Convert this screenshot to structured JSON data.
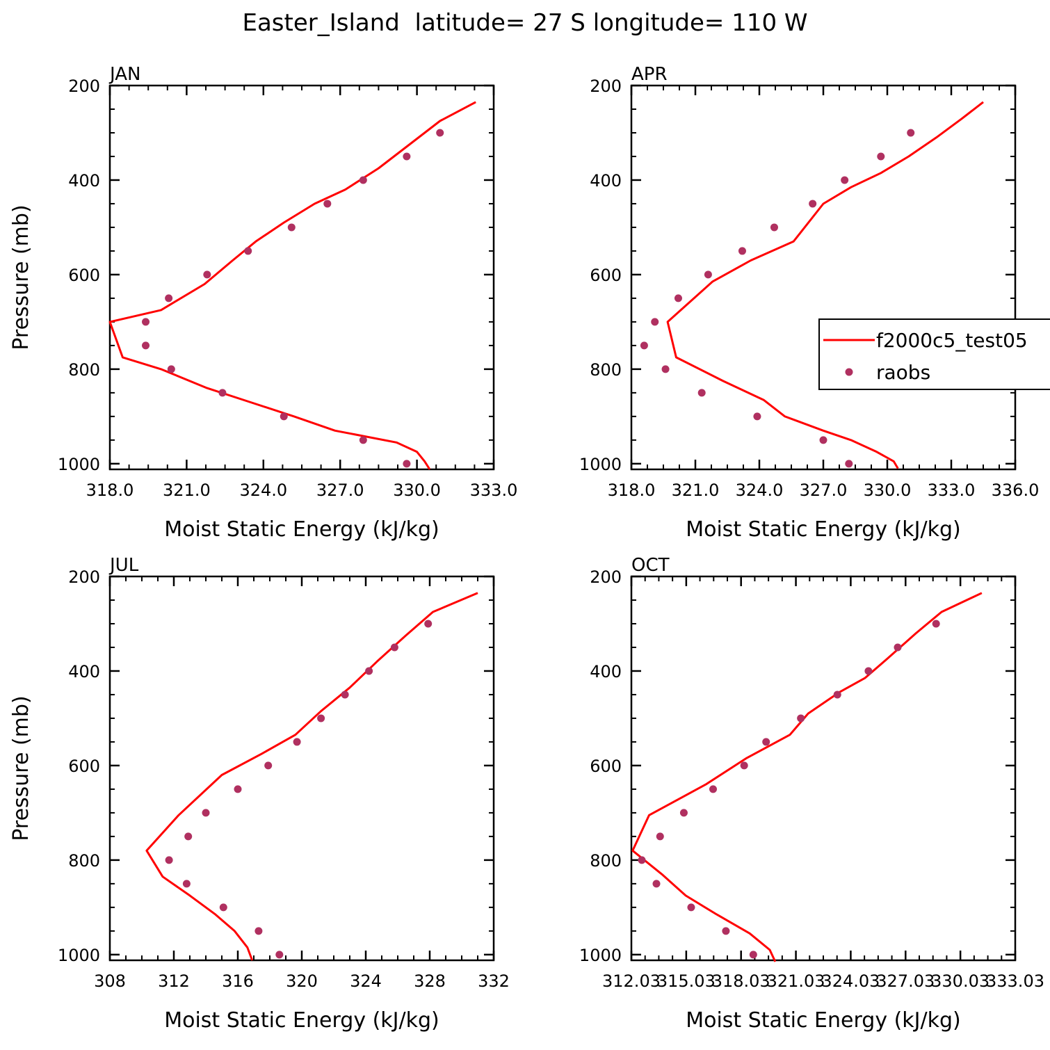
{
  "figure": {
    "title": "Easter_Island  latitude= 27 S longitude= 110 W"
  },
  "colors": {
    "model_line": "#ff0000",
    "obs_marker": "#b03060",
    "axis": "#000000"
  },
  "legend": {
    "panel": 1,
    "entries": [
      {
        "label": "f2000c5_test05",
        "kind": "line"
      },
      {
        "label": "raobs",
        "kind": "marker"
      }
    ]
  },
  "chart_data": [
    {
      "type": "line",
      "panel_label": "JAN",
      "xlabel": "Moist Static Energy (kJ/kg)",
      "ylabel": "Pressure (mb)",
      "xlim": [
        318,
        333
      ],
      "ylim": [
        1000,
        200
      ],
      "x_ticks": [
        318,
        321,
        324,
        327,
        330,
        333
      ],
      "x_tick_labels": [
        "318.0",
        "321.0",
        "324.0",
        "327.0",
        "330.0",
        "333.0"
      ],
      "y_ticks": [
        200,
        400,
        600,
        800,
        1000
      ],
      "y_tick_labels": [
        "200",
        "400",
        "600",
        "800",
        "1000"
      ],
      "series": [
        {
          "name": "f2000c5_test05",
          "kind": "line",
          "x": [
            332.3,
            330.9,
            329.7,
            328.5,
            327.2,
            326.0,
            324.8,
            323.7,
            322.8,
            321.7,
            320.0,
            318.0,
            318.5,
            320.0,
            321.8,
            323.5,
            325.2,
            326.8,
            329.2,
            330.0,
            330.3,
            330.5
          ],
          "y": [
            235,
            275,
            325,
            375,
            420,
            450,
            490,
            530,
            570,
            620,
            675,
            700,
            775,
            800,
            840,
            870,
            900,
            930,
            955,
            975,
            995,
            1012
          ]
        },
        {
          "name": "raobs",
          "kind": "marker",
          "x": [
            330.9,
            329.6,
            327.9,
            326.5,
            325.1,
            323.4,
            321.8,
            320.3,
            319.4,
            319.4,
            320.4,
            322.4,
            324.8,
            327.9,
            329.6
          ],
          "y": [
            300,
            350,
            400,
            450,
            500,
            550,
            600,
            650,
            700,
            750,
            800,
            850,
            900,
            950,
            1000
          ]
        }
      ]
    },
    {
      "type": "line",
      "panel_label": "APR",
      "xlabel": "Moist Static Energy (kJ/kg)",
      "ylabel": "",
      "xlim": [
        318,
        336
      ],
      "ylim": [
        1000,
        200
      ],
      "x_ticks": [
        318,
        321,
        324,
        327,
        330,
        333,
        336
      ],
      "x_tick_labels": [
        "318.0",
        "321.0",
        "324.0",
        "327.0",
        "330.0",
        "333.0",
        "336.0"
      ],
      "y_ticks": [
        200,
        400,
        600,
        800,
        1000
      ],
      "y_tick_labels": [
        "200",
        "400",
        "600",
        "800",
        "1000"
      ],
      "series": [
        {
          "name": "f2000c5_test05",
          "kind": "line",
          "x": [
            334.5,
            333.5,
            332.3,
            331.0,
            329.7,
            328.3,
            327.0,
            325.6,
            323.6,
            321.8,
            319.7,
            320.1,
            322.3,
            324.2,
            325.2,
            327.0,
            328.3,
            329.5,
            330.3,
            330.5
          ],
          "y": [
            235,
            270,
            310,
            350,
            385,
            415,
            450,
            530,
            570,
            615,
            700,
            775,
            825,
            865,
            900,
            930,
            950,
            975,
            995,
            1010
          ]
        },
        {
          "name": "raobs",
          "kind": "marker",
          "x": [
            331.1,
            329.7,
            328.0,
            326.5,
            324.7,
            323.2,
            321.6,
            320.2,
            319.1,
            318.6,
            319.6,
            321.3,
            323.9,
            327.0,
            328.2
          ],
          "y": [
            300,
            350,
            400,
            450,
            500,
            550,
            600,
            650,
            700,
            750,
            800,
            850,
            900,
            950,
            1000
          ]
        }
      ]
    },
    {
      "type": "line",
      "panel_label": "JUL",
      "xlabel": "Moist Static Energy (kJ/kg)",
      "ylabel": "Pressure (mb)",
      "xlim": [
        308,
        332
      ],
      "ylim": [
        1000,
        200
      ],
      "x_ticks": [
        308,
        312,
        316,
        320,
        324,
        328,
        332
      ],
      "x_tick_labels": [
        "308",
        "312",
        "316",
        "320",
        "324",
        "328",
        "332"
      ],
      "y_ticks": [
        200,
        400,
        600,
        800,
        1000
      ],
      "y_tick_labels": [
        "200",
        "400",
        "600",
        "800",
        "1000"
      ],
      "series": [
        {
          "name": "f2000c5_test05",
          "kind": "line",
          "x": [
            331.0,
            328.2,
            326.5,
            324.7,
            323.0,
            321.2,
            319.6,
            317.5,
            315.0,
            312.3,
            310.3,
            311.3,
            313.0,
            314.6,
            315.8,
            316.6,
            316.9
          ],
          "y": [
            235,
            275,
            325,
            380,
            435,
            485,
            535,
            575,
            620,
            705,
            780,
            835,
            875,
            915,
            950,
            985,
            1012
          ]
        },
        {
          "name": "raobs",
          "kind": "marker",
          "x": [
            327.9,
            325.8,
            324.2,
            322.7,
            321.2,
            319.7,
            317.9,
            316.0,
            314.0,
            312.9,
            311.7,
            312.8,
            315.1,
            317.3,
            318.6
          ],
          "y": [
            300,
            350,
            400,
            450,
            500,
            550,
            600,
            650,
            700,
            750,
            800,
            850,
            900,
            950,
            1000
          ]
        }
      ]
    },
    {
      "type": "line",
      "panel_label": "OCT",
      "xlabel": "Moist Static Energy (kJ/kg)",
      "ylabel": "",
      "xlim": [
        312.03,
        333.03
      ],
      "ylim": [
        1000,
        200
      ],
      "x_ticks": [
        312.03,
        315.03,
        318.03,
        321.03,
        324.03,
        327.03,
        330.03,
        333.03
      ],
      "x_tick_labels": [
        "312.03",
        "315.03",
        "318.03",
        "321.03",
        "324.03",
        "327.03",
        "330.03",
        "333.03"
      ],
      "y_ticks": [
        200,
        400,
        600,
        800,
        1000
      ],
      "y_tick_labels": [
        "200",
        "400",
        "600",
        "800",
        "1000"
      ],
      "series": [
        {
          "name": "f2000c5_test05",
          "kind": "line",
          "x": [
            331.2,
            329.0,
            327.6,
            326.0,
            324.8,
            323.4,
            321.7,
            320.7,
            318.3,
            316.1,
            313.0,
            312.1,
            313.7,
            315.0,
            316.7,
            318.5,
            319.6,
            319.9
          ],
          "y": [
            235,
            275,
            320,
            375,
            415,
            445,
            490,
            535,
            585,
            640,
            705,
            780,
            830,
            875,
            915,
            955,
            990,
            1015
          ]
        },
        {
          "name": "raobs",
          "kind": "marker",
          "x": [
            328.7,
            326.6,
            325.0,
            323.3,
            321.3,
            319.4,
            318.2,
            316.5,
            314.9,
            313.6,
            312.6,
            313.4,
            315.3,
            317.2,
            318.7
          ],
          "y": [
            300,
            350,
            400,
            450,
            500,
            550,
            600,
            650,
            700,
            750,
            800,
            850,
            900,
            950,
            1000
          ]
        }
      ]
    }
  ]
}
